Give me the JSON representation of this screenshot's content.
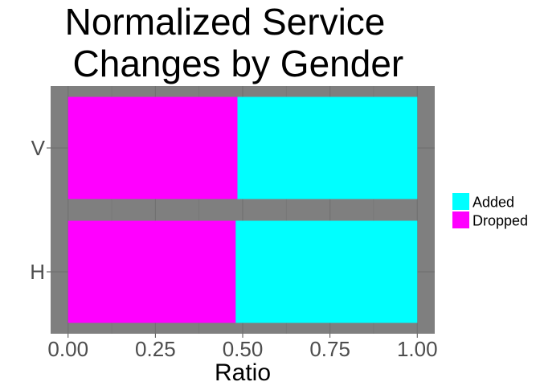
{
  "chart_data": {
    "type": "bar",
    "orientation": "horizontal",
    "stacked": true,
    "title_lines": [
      "Normalized Service",
      " Changes by Gender"
    ],
    "xlabel": "Ratio",
    "ylabel": "",
    "categories": [
      "H",
      "V"
    ],
    "series": [
      {
        "name": "Dropped",
        "values": [
          0.48,
          0.485
        ],
        "color": "#ff00ff"
      },
      {
        "name": "Added",
        "values": [
          0.52,
          0.515
        ],
        "color": "#00ffff"
      }
    ],
    "xlim": [
      -0.05,
      1.05
    ],
    "xticks": [
      "0.00",
      "0.25",
      "0.50",
      "0.75",
      "1.00"
    ],
    "xtick_values": [
      0,
      0.25,
      0.5,
      0.75,
      1.0
    ],
    "legend": {
      "placement": "right",
      "entries": [
        "Added",
        "Dropped"
      ]
    },
    "panel_background": "#7f7f7f",
    "grid": true
  }
}
